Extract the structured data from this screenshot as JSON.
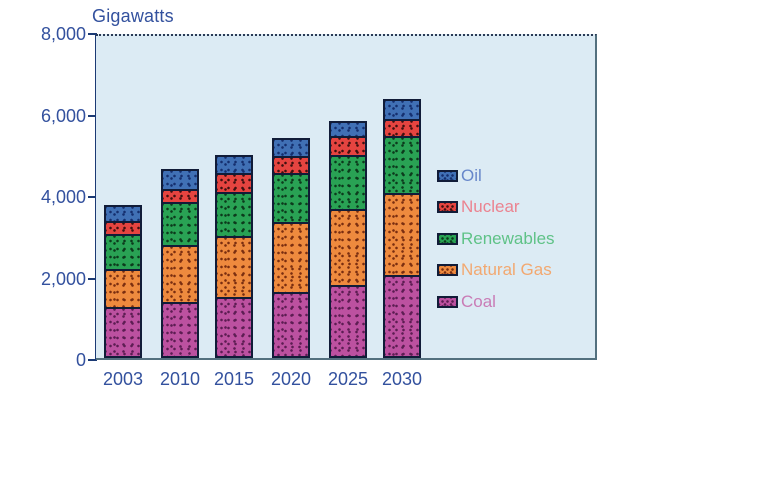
{
  "chart_data": {
    "type": "bar",
    "stacked": true,
    "title": "Gigawatts",
    "xlabel": "",
    "ylabel": "Gigawatts",
    "categories": [
      "2003",
      "2010",
      "2015",
      "2020",
      "2025",
      "2030"
    ],
    "series": [
      {
        "name": "Coal",
        "values": [
          1250,
          1375,
          1475,
          1600,
          1775,
          2025
        ],
        "fill": "#bc51a0",
        "dot_color": "#5c1d52",
        "label_color": "#c97cb6"
      },
      {
        "name": "Natural Gas",
        "values": [
          950,
          1425,
          1550,
          1775,
          1925,
          2075
        ],
        "fill": "#ee8a3e",
        "dot_color": "#7a2e10",
        "label_color": "#f2a870"
      },
      {
        "name": "Renewables",
        "values": [
          875,
          1100,
          1100,
          1225,
          1350,
          1400
        ],
        "fill": "#29a254",
        "dot_color": "#0c3a1c",
        "label_color": "#5fc287"
      },
      {
        "name": "Nuclear",
        "values": [
          300,
          275,
          425,
          375,
          450,
          400
        ],
        "fill": "#e54440",
        "dot_color": "#401010",
        "label_color": "#eb8390"
      },
      {
        "name": "Oil",
        "values": [
          375,
          475,
          425,
          425,
          325,
          450
        ],
        "fill": "#4070b5",
        "dot_color": "#152f6e",
        "label_color": "#6787ca"
      }
    ],
    "totals": [
      3750,
      4650,
      4975,
      5400,
      5825,
      6350
    ],
    "ylim": [
      0,
      8000
    ],
    "yticks": [
      0,
      2000,
      4000,
      6000,
      8000
    ],
    "ytick_labels": [
      "0",
      "2,000",
      "4,000",
      "6,000",
      "8,000"
    ],
    "legend_order": [
      "Oil",
      "Nuclear",
      "Renewables",
      "Natural Gas",
      "Coal"
    ],
    "legend_position": "inside-right",
    "grid": false,
    "plot_bg": "#dcebf4",
    "axis_color": "#1b3a74",
    "tick_label_color": "#33519e",
    "segment_border_color": "#111c38"
  }
}
